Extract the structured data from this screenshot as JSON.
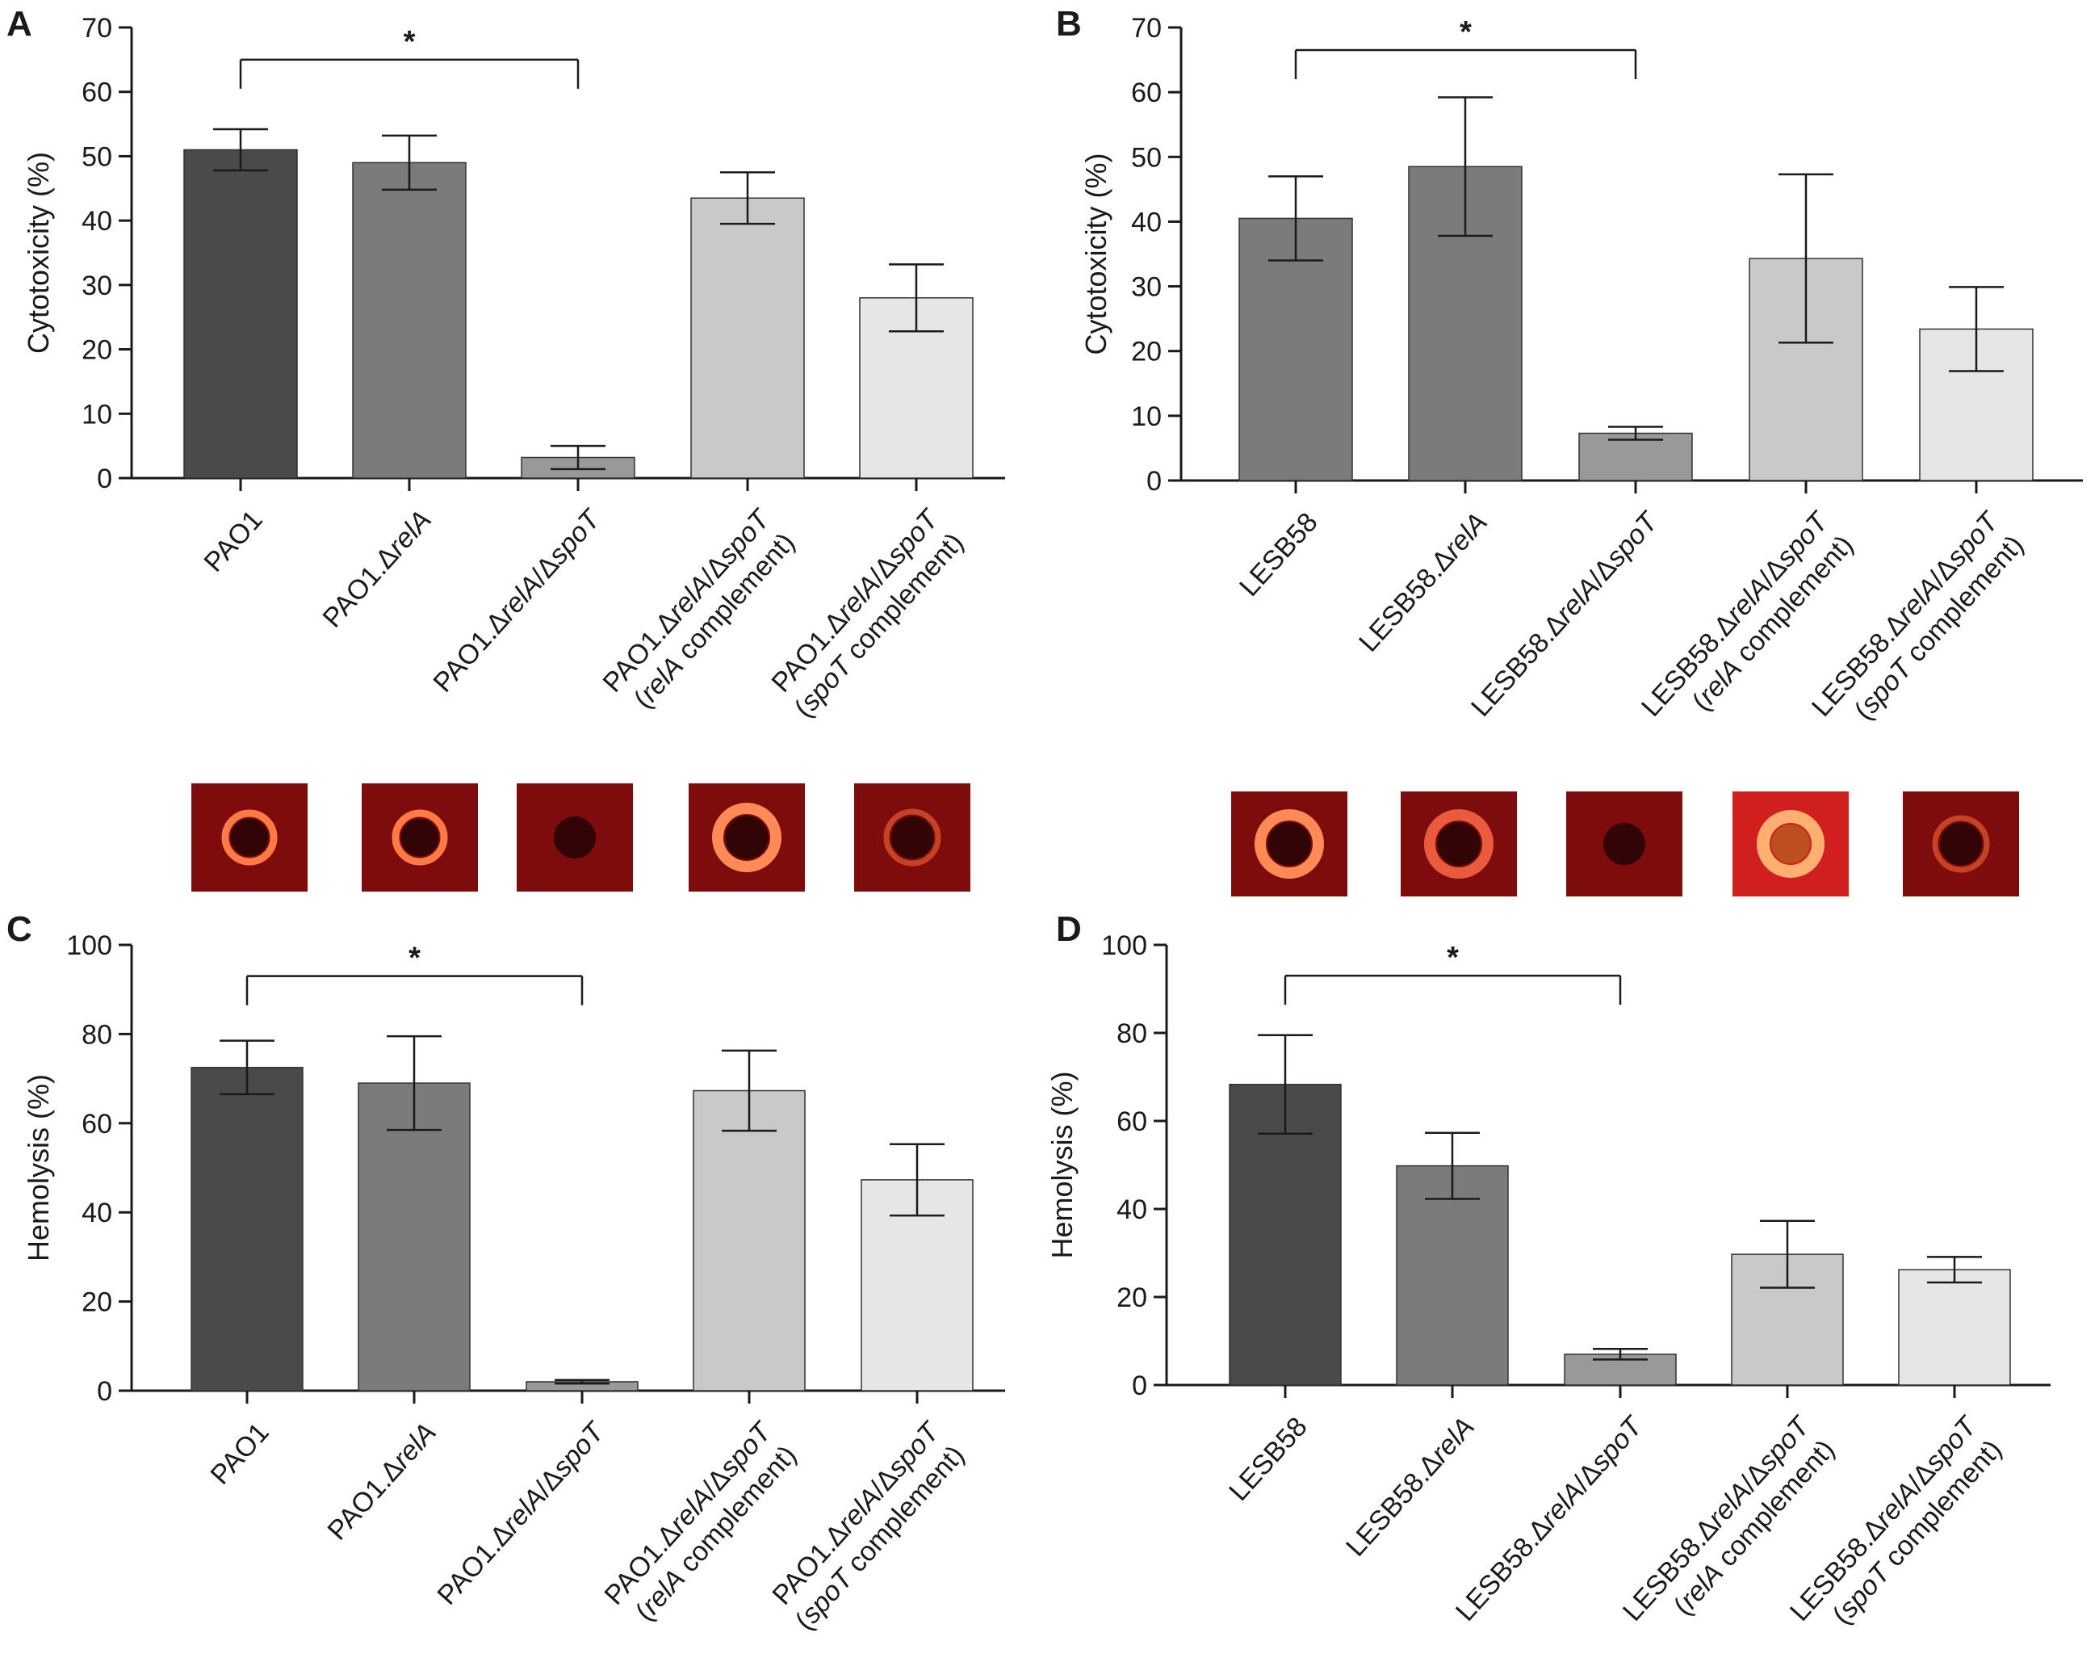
{
  "figure": {
    "colors": {
      "axis": "#1a1a1a",
      "bar_fills": [
        "#4a4a4a",
        "#7b7b7b",
        "#999999",
        "#c9c9c9",
        "#e6e6e6"
      ],
      "bar_fills_b": [
        "#7b7b7b",
        "#7b7b7b",
        "#999999",
        "#c9c9c9",
        "#e6e6e6"
      ],
      "plate_red": "#7e0c0c",
      "plate_halo": "#ff6a3a"
    }
  },
  "plates": [
    {
      "panel": "A",
      "colony": "dark",
      "halo": "thin-bright"
    },
    {
      "panel": "A",
      "colony": "dark",
      "halo": "thin-bright"
    },
    {
      "panel": "A",
      "colony": "dark",
      "halo": "none"
    },
    {
      "panel": "A",
      "colony": "dark",
      "halo": "thick-bright"
    },
    {
      "panel": "A",
      "colony": "dark",
      "halo": "faint"
    },
    {
      "panel": "B",
      "colony": "dark",
      "halo": "thick-bright"
    },
    {
      "panel": "B",
      "colony": "dark",
      "halo": "thick"
    },
    {
      "panel": "B",
      "colony": "dark",
      "halo": "none"
    },
    {
      "panel": "B",
      "colony": "orange",
      "halo": "bright"
    },
    {
      "panel": "B",
      "colony": "dark",
      "halo": "faint"
    }
  ],
  "chart_data": [
    {
      "panel": "A",
      "type": "bar",
      "ylabel": "Cytotoxicity (%)",
      "ylim": [
        0,
        70
      ],
      "yticks": [
        0,
        10,
        20,
        30,
        40,
        50,
        60,
        70
      ],
      "categories": [
        [
          "PAO1"
        ],
        [
          "PAO1.ΔrelA"
        ],
        [
          "PAO1.ΔrelA/ΔspoT"
        ],
        [
          "PAO1.ΔrelA/ΔspoT",
          "(relA complement)"
        ],
        [
          "PAO1.ΔrelA/ΔspoT",
          "(spoT complement)"
        ]
      ],
      "values": [
        51,
        49,
        3.2,
        43.5,
        28
      ],
      "errors": [
        3.2,
        4.2,
        1.8,
        4,
        5.2
      ],
      "significance": {
        "from": 0,
        "to": 2,
        "label": "*",
        "level": 65
      }
    },
    {
      "panel": "B",
      "type": "bar",
      "ylabel": "Cytotoxicity (%)",
      "ylim": [
        0,
        70
      ],
      "yticks": [
        0,
        10,
        20,
        30,
        40,
        50,
        60,
        70
      ],
      "categories": [
        [
          "LESB58"
        ],
        [
          "LESB58.ΔrelA"
        ],
        [
          "LESB58.ΔrelA/ΔspoT"
        ],
        [
          "LESB58.ΔrelA/ΔspoT",
          "(relA complement)"
        ],
        [
          "LESB58.ΔrelA/ΔspoT",
          "(spoT complement)"
        ]
      ],
      "values": [
        40.5,
        48.5,
        7.3,
        34.3,
        23.4
      ],
      "errors": [
        6.5,
        10.7,
        1,
        13,
        6.5
      ],
      "significance": {
        "from": 0,
        "to": 2,
        "label": "*",
        "level": 66.5
      }
    },
    {
      "panel": "C",
      "type": "bar",
      "ylabel": "Hemolysis (%)",
      "ylim": [
        0,
        100
      ],
      "yticks": [
        0,
        20,
        40,
        60,
        80,
        100
      ],
      "categories": [
        [
          "PAO1"
        ],
        [
          "PAO1.ΔrelA"
        ],
        [
          "PAO1.ΔrelA/ΔspoT"
        ],
        [
          "PAO1.ΔrelA/ΔspoT",
          "(relA complement)"
        ],
        [
          "PAO1.ΔrelA/ΔspoT",
          "(spoT complement)"
        ]
      ],
      "values": [
        72.5,
        69,
        2,
        67.3,
        47.3
      ],
      "errors": [
        6,
        10.5,
        0.4,
        9,
        8
      ],
      "significance": {
        "from": 0,
        "to": 2,
        "label": "*",
        "level": 93
      }
    },
    {
      "panel": "D",
      "type": "bar",
      "ylabel": "Hemolysis (%)",
      "ylim": [
        0,
        100
      ],
      "yticks": [
        0,
        20,
        40,
        60,
        80,
        100
      ],
      "categories": [
        [
          "LESB58"
        ],
        [
          "LESB58.ΔrelA"
        ],
        [
          "LESB58.ΔrelA/ΔspoT"
        ],
        [
          "LESB58.ΔrelA/ΔspoT",
          "(relA complement)"
        ],
        [
          "LESB58.ΔrelA/ΔspoT",
          "(spoT complement)"
        ]
      ],
      "values": [
        68.3,
        49.8,
        7,
        29.7,
        26.2
      ],
      "errors": [
        11.2,
        7.5,
        1.2,
        7.6,
        2.9
      ],
      "significance": {
        "from": 0,
        "to": 2,
        "label": "*",
        "level": 93
      }
    }
  ]
}
